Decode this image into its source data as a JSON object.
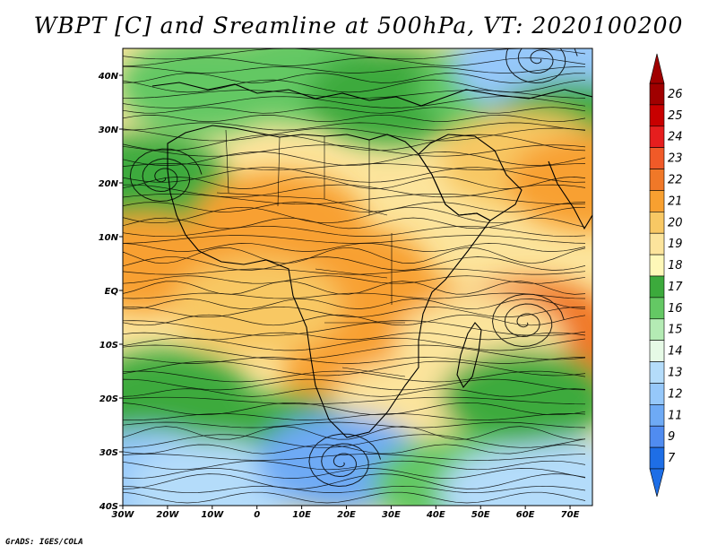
{
  "title": "WBPT [C] and Sreamline at 500hPa, VT: 2020100200",
  "credit": "GrADS: IGES/COLA",
  "map": {
    "lon_range": [
      -30,
      75
    ],
    "lat_range": [
      -40,
      45
    ],
    "lon_ticks": [
      {
        "value": -30,
        "label": "30W"
      },
      {
        "value": -20,
        "label": "20W"
      },
      {
        "value": -10,
        "label": "10W"
      },
      {
        "value": 0,
        "label": "0"
      },
      {
        "value": 10,
        "label": "10E"
      },
      {
        "value": 20,
        "label": "20E"
      },
      {
        "value": 30,
        "label": "30E"
      },
      {
        "value": 40,
        "label": "40E"
      },
      {
        "value": 50,
        "label": "50E"
      },
      {
        "value": 60,
        "label": "60E"
      },
      {
        "value": 70,
        "label": "70E"
      }
    ],
    "lat_ticks": [
      {
        "value": 40,
        "label": "40N"
      },
      {
        "value": 30,
        "label": "30N"
      },
      {
        "value": 20,
        "label": "20N"
      },
      {
        "value": 10,
        "label": "10N"
      },
      {
        "value": 0,
        "label": "EQ"
      },
      {
        "value": -10,
        "label": "10S"
      },
      {
        "value": -20,
        "label": "20S"
      },
      {
        "value": -30,
        "label": "30S"
      },
      {
        "value": -40,
        "label": "40S"
      }
    ],
    "field_blobs": [
      {
        "lon": -12,
        "lat": 38,
        "value": 16
      },
      {
        "lon": 10,
        "lat": 40,
        "value": 16
      },
      {
        "lon": 30,
        "lat": 36,
        "value": 17
      },
      {
        "lon": 55,
        "lat": 38,
        "value": 16
      },
      {
        "lon": 63,
        "lat": 42,
        "value": 12
      },
      {
        "lon": 70,
        "lat": 30,
        "value": 17
      },
      {
        "lon": -25,
        "lat": 20,
        "value": 17
      },
      {
        "lon": 60,
        "lat": 24,
        "value": 20
      },
      {
        "lon": 75,
        "lat": 20,
        "value": 21
      },
      {
        "lon": 5,
        "lat": 13,
        "value": 21
      },
      {
        "lon": -25,
        "lat": 5,
        "value": 21
      },
      {
        "lon": 20,
        "lat": 3,
        "value": 21
      },
      {
        "lon": 30,
        "lat": -5,
        "value": 21
      },
      {
        "lon": 25,
        "lat": -15,
        "value": 21
      },
      {
        "lon": 61,
        "lat": -7,
        "value": 22
      },
      {
        "lon": 65,
        "lat": -13,
        "value": 22
      },
      {
        "lon": 0,
        "lat": -3,
        "value": 20
      },
      {
        "lon": 50,
        "lat": -10,
        "value": 19
      },
      {
        "lon": 35,
        "lat": -22,
        "value": 19
      },
      {
        "lon": -20,
        "lat": -20,
        "value": 17
      },
      {
        "lon": 60,
        "lat": -20,
        "value": 17
      },
      {
        "lon": 5,
        "lat": -28,
        "value": 17
      },
      {
        "lon": -25,
        "lat": -35,
        "value": 12
      },
      {
        "lon": -10,
        "lat": -37,
        "value": 13
      },
      {
        "lon": 19,
        "lat": -32,
        "value": 11
      },
      {
        "lon": 45,
        "lat": -36,
        "value": 16
      },
      {
        "lon": 60,
        "lat": -38,
        "value": 13
      },
      {
        "lon": 70,
        "lat": -37,
        "value": 13
      }
    ],
    "vortices": [
      {
        "lon": -21,
        "lat": 21
      },
      {
        "lon": 63,
        "lat": 43
      },
      {
        "lon": 19,
        "lat": -32
      },
      {
        "lon": 60,
        "lat": -6
      }
    ]
  },
  "colorbar": {
    "levels": [
      {
        "label": "26",
        "color": "#a00000"
      },
      {
        "label": "25",
        "color": "#c80000"
      },
      {
        "label": "24",
        "color": "#e61e1e"
      },
      {
        "label": "23",
        "color": "#f05a28"
      },
      {
        "label": "22",
        "color": "#f07828"
      },
      {
        "label": "21",
        "color": "#f8a030"
      },
      {
        "label": "20",
        "color": "#f8c864"
      },
      {
        "label": "19",
        "color": "#fce49c"
      },
      {
        "label": "18",
        "color": "#fef8b8"
      },
      {
        "label": "17",
        "color": "#3caa3c"
      },
      {
        "label": "16",
        "color": "#64c864"
      },
      {
        "label": "15",
        "color": "#b4ebb4"
      },
      {
        "label": "14",
        "color": "#e6fae6"
      },
      {
        "label": "13",
        "color": "#b4dcfa"
      },
      {
        "label": "12",
        "color": "#96c8fa"
      },
      {
        "label": "11",
        "color": "#6eaaf5"
      },
      {
        "label": "9",
        "color": "#508cf0"
      },
      {
        "label": "7",
        "color": "#1e6ee6"
      }
    ],
    "top_color": "#a00000",
    "bottom_color": "#1e6ee6"
  }
}
